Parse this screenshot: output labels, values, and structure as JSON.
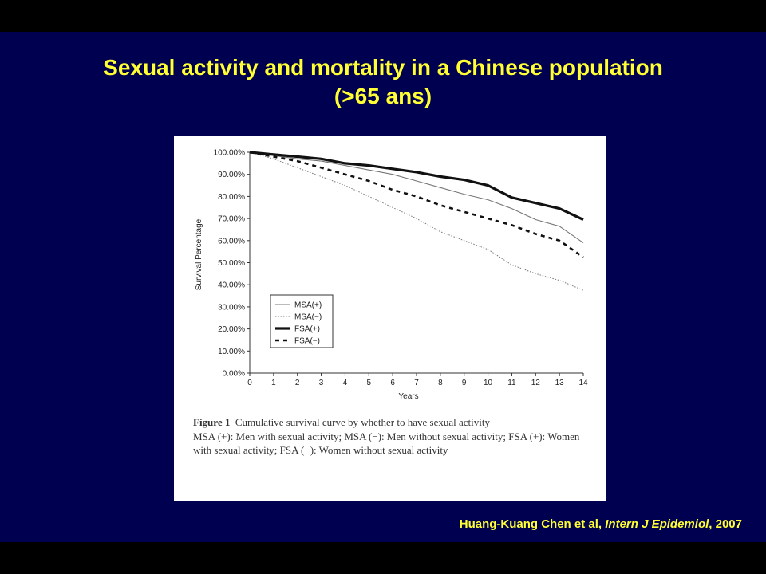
{
  "slide": {
    "title_line1": "Sexual activity and mortality in a Chinese population",
    "title_line2": "(>65 ans)",
    "citation_authors": "Huang-Kuang Chen et al, ",
    "citation_journal": "Intern J Epidemiol",
    "citation_year": ", 2007",
    "background_color": "#000050",
    "title_color": "#ffff33"
  },
  "figure": {
    "caption_label": "Figure 1",
    "caption_title": "Cumulative survival curve by whether to have sexual activity",
    "caption_note": "MSA (+): Men with sexual activity; MSA (−): Men without sexual activity; FSA (+): Women with sexual activity; FSA (−): Women without sexual activity"
  },
  "chart_data": {
    "type": "line",
    "xlabel": "Years",
    "ylabel": "Survival Percentage",
    "x": [
      0,
      1,
      2,
      3,
      4,
      5,
      6,
      7,
      8,
      9,
      10,
      11,
      12,
      13,
      14
    ],
    "xlim": [
      0,
      14
    ],
    "ylim": [
      0,
      100
    ],
    "yticks": [
      0,
      10,
      20,
      30,
      40,
      50,
      60,
      70,
      80,
      90,
      100
    ],
    "ytick_labels": [
      "0.00%",
      "10.00%",
      "20.00%",
      "30.00%",
      "40.00%",
      "50.00%",
      "60.00%",
      "70.00%",
      "80.00%",
      "90.00%",
      "100.00%"
    ],
    "legend_position": "lower-left",
    "series": [
      {
        "name": "MSA(+)",
        "style": "thin-solid",
        "values": [
          100,
          98.5,
          97,
          96,
          94,
          92,
          90,
          87,
          84,
          81,
          78.5,
          74.5,
          69.5,
          66.5,
          59
        ]
      },
      {
        "name": "MSA(−)",
        "style": "thin-dotted",
        "values": [
          100,
          97,
          93,
          89,
          85,
          80,
          75,
          70,
          64,
          60,
          56,
          49,
          45,
          42,
          37.5
        ]
      },
      {
        "name": "FSA(+)",
        "style": "thick-solid",
        "values": [
          100,
          99,
          98,
          97,
          95,
          94,
          92.5,
          91,
          89,
          87.5,
          85,
          79.5,
          77,
          74.5,
          69.5
        ]
      },
      {
        "name": "FSA(−)",
        "style": "thick-dashed",
        "values": [
          100,
          98,
          96,
          93,
          90,
          87,
          83,
          80,
          76,
          73,
          70,
          67,
          63,
          60,
          52.5
        ]
      }
    ]
  }
}
